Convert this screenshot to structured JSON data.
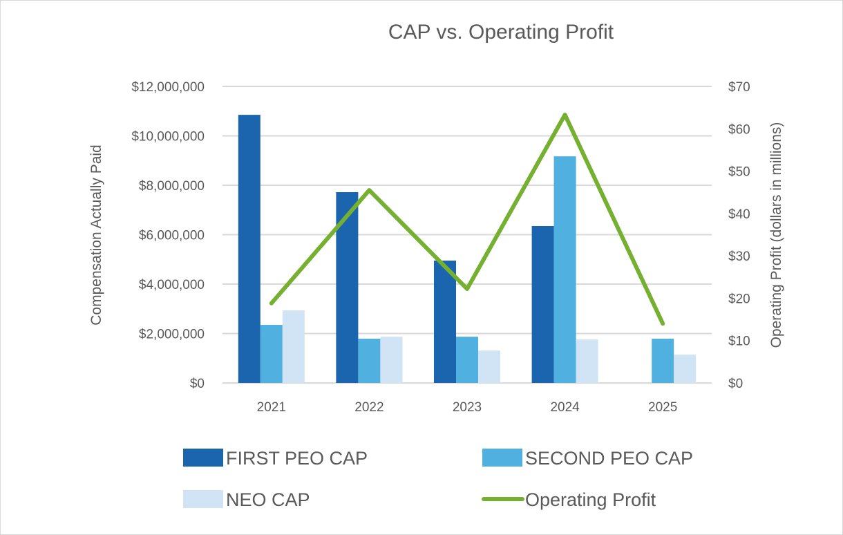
{
  "chart_data": {
    "type": "bar",
    "title": "CAP vs. Operating Profit",
    "xlabel": "",
    "ylabel": "Compensation Actually Paid",
    "y2label": "Operating Profit (dollars in millions)",
    "categories": [
      "2021",
      "2022",
      "2023",
      "2024",
      "2025"
    ],
    "ylim": [
      0,
      12000000
    ],
    "y2lim": [
      0,
      70
    ],
    "yticks": [
      "$0",
      "$2,000,000",
      "$4,000,000",
      "$6,000,000",
      "$8,000,000",
      "$10,000,000",
      "$12,000,000"
    ],
    "y2ticks": [
      "$0",
      "$10",
      "$20",
      "$30",
      "$40",
      "$50",
      "$60",
      "$70"
    ],
    "grid": true,
    "legend_position": "bottom",
    "series": [
      {
        "name": "FIRST PEO CAP",
        "type": "bar",
        "axis": "left",
        "color": "#1a65ad",
        "values": [
          10850000,
          7720000,
          4950000,
          6350000,
          null
        ]
      },
      {
        "name": "SECOND PEO CAP",
        "type": "bar",
        "axis": "left",
        "color": "#50b0e0",
        "values": [
          2350000,
          1790000,
          1870000,
          9170000,
          1790000
        ]
      },
      {
        "name": "NEO CAP",
        "type": "bar",
        "axis": "left",
        "color": "#d0e4f5",
        "values": [
          2940000,
          1870000,
          1310000,
          1760000,
          1150000
        ]
      },
      {
        "name": "Operating Profit",
        "type": "line",
        "axis": "right",
        "color": "#76b031",
        "values": [
          18.8,
          45.5,
          22.2,
          63.3,
          14.0
        ]
      }
    ]
  }
}
